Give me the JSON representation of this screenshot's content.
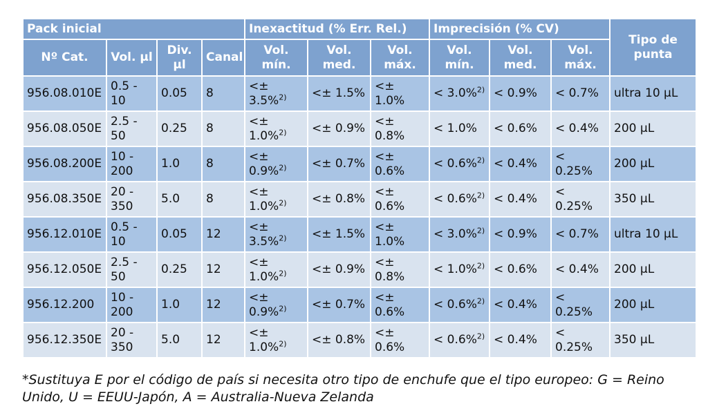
{
  "header": {
    "group_pack": "Pack inicial",
    "group_inexact": "Inexactitud (% Err. Rel.)",
    "group_imprec": "Imprecisión (% CV)",
    "cat": "Nº Cat.",
    "vol": "Vol. µl",
    "div": "Div. µl",
    "canal": "Canal",
    "vol_min": "Vol. mín.",
    "vol_med": "Vol. med.",
    "vol_max": "Vol. máx.",
    "tipo": "Tipo de punta"
  },
  "rows": [
    {
      "cat": "956.08.010E",
      "vol": "0.5 - 10",
      "div": "0.05",
      "canal": "8",
      "in_min": "<± 3.5%",
      "in_min_sup": "2)",
      "in_med": "<± 1.5%",
      "in_max": "<± 1.0%",
      "im_min": "< 3.0%",
      "im_min_sup": "2)",
      "im_med": "< 0.9%",
      "im_max": "< 0.7%",
      "tipo": "ultra 10 µL"
    },
    {
      "cat": "956.08.050E",
      "vol": "2.5 - 50",
      "div": "0.25",
      "canal": "8",
      "in_min": "<± 1.0%",
      "in_min_sup": "2)",
      "in_med": "<± 0.9%",
      "in_max": "<± 0.8%",
      "im_min": "< 1.0%",
      "im_min_sup": "",
      "im_med": "< 0.6%",
      "im_max": "< 0.4%",
      "tipo": "200 µL"
    },
    {
      "cat": "956.08.200E",
      "vol": "10 - 200",
      "div": "1.0",
      "canal": "8",
      "in_min": "<± 0.9%",
      "in_min_sup": "2)",
      "in_med": "<± 0.7%",
      "in_max": "<± 0.6%",
      "im_min": "< 0.6%",
      "im_min_sup": "2)",
      "im_med": "< 0.4%",
      "im_max": "< 0.25%",
      "tipo": "200 µL"
    },
    {
      "cat": "956.08.350E",
      "vol": "20 - 350",
      "div": "5.0",
      "canal": "8",
      "in_min": "<± 1.0%",
      "in_min_sup": "2)",
      "in_med": "<± 0.8%",
      "in_max": "<± 0.6%",
      "im_min": "< 0.6%",
      "im_min_sup": "2)",
      "im_med": "< 0.4%",
      "im_max": "< 0.25%",
      "tipo": "350 µL"
    },
    {
      "cat": "956.12.010E",
      "vol": "0.5 - 10",
      "div": "0.05",
      "canal": "12",
      "in_min": "<± 3.5%",
      "in_min_sup": "2)",
      "in_med": "<± 1.5%",
      "in_max": "<± 1.0%",
      "im_min": "< 3.0%",
      "im_min_sup": "2)",
      "im_med": "< 0.9%",
      "im_max": "< 0.7%",
      "tipo": "ultra 10 µL"
    },
    {
      "cat": "956.12.050E",
      "vol": "2.5 - 50",
      "div": "0.25",
      "canal": "12",
      "in_min": "<± 1.0%",
      "in_min_sup": "2)",
      "in_med": "<± 0.9%",
      "in_max": "<± 0.8%",
      "im_min": "< 1.0%",
      "im_min_sup": "2)",
      "im_med": "< 0.6%",
      "im_max": "< 0.4%",
      "tipo": "200 µL"
    },
    {
      "cat": "956.12.200",
      "vol": "10 - 200",
      "div": "1.0",
      "canal": "12",
      "in_min": "<± 0.9%",
      "in_min_sup": "2)",
      "in_med": "<± 0.7%",
      "in_max": "<± 0.6%",
      "im_min": "< 0.6%",
      "im_min_sup": "2)",
      "im_med": "< 0.4%",
      "im_max": "< 0.25%",
      "tipo": "200 µL"
    },
    {
      "cat": "956.12.350E",
      "vol": "20 - 350",
      "div": "5.0",
      "canal": "12",
      "in_min": "<± 1.0%",
      "in_min_sup": "2)",
      "in_med": "<± 0.8%",
      "in_max": "<± 0.6%",
      "im_min": "< 0.6%",
      "im_min_sup": "2)",
      "im_med": "< 0.4%",
      "im_max": "< 0.25%",
      "tipo": "350 µL"
    }
  ],
  "footnote": "*Sustituya E por el código de país si necesita otro tipo de enchufe que el tipo europeo: G = Reino Unido, U = EEUU-Japón, A = Australia-Nueva Zelanda"
}
